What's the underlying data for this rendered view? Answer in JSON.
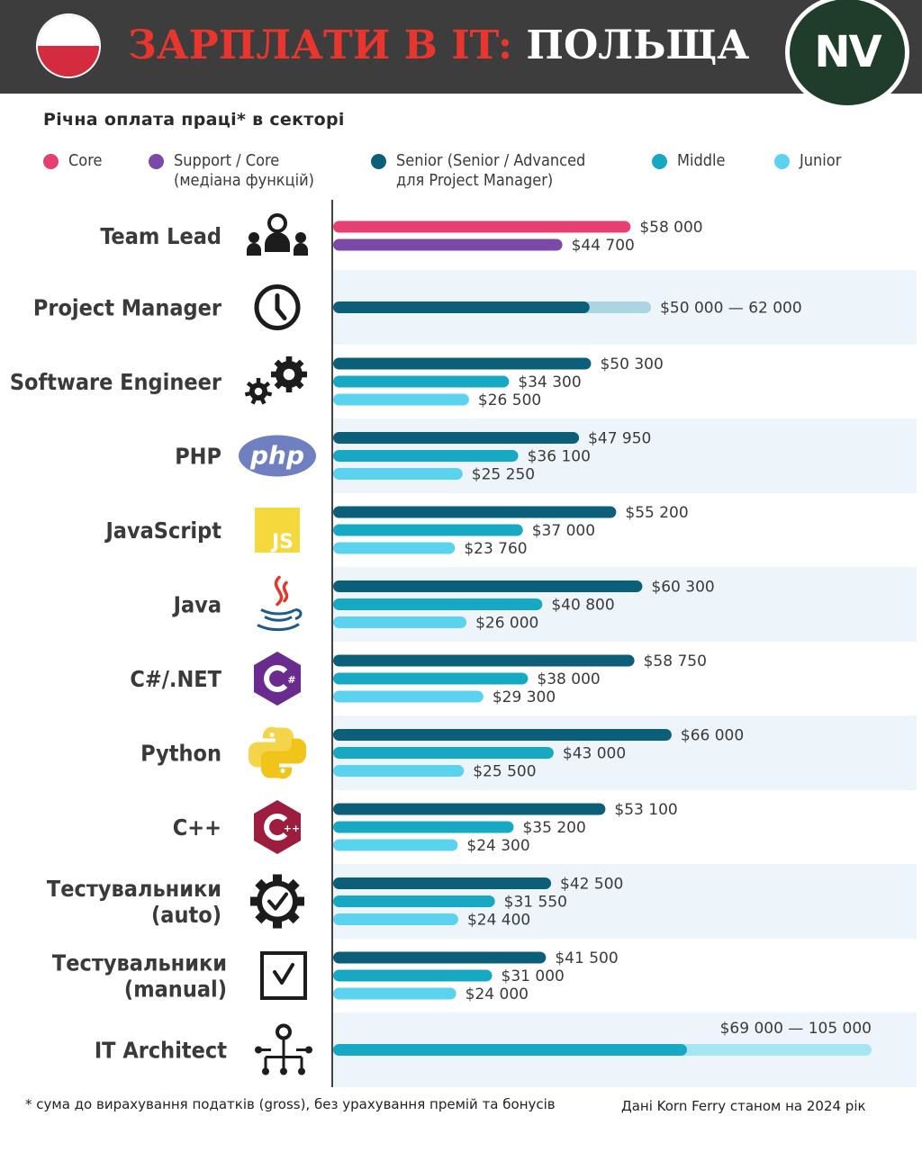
{
  "header": {
    "title_part1": "ЗАРПЛАТИ В IT:",
    "title_part2": "ПОЛЬЩА",
    "logo_text": "NV"
  },
  "subtitle": "Річна оплата праці* в секторі",
  "legend": [
    {
      "label_line1": "Core",
      "label_line2": "",
      "color": "#e63f72"
    },
    {
      "label_line1": "Support / Core",
      "label_line2": "(медіана функцій)",
      "color": "#7b4aa8"
    },
    {
      "label_line1": "Senior (Senior / Advanced",
      "label_line2": "для Project Manager)",
      "color": "#0c5f78"
    },
    {
      "label_line1": "Middle",
      "label_line2": "",
      "color": "#17a9c4"
    },
    {
      "label_line1": "Junior",
      "label_line2": "",
      "color": "#5bd3ee"
    }
  ],
  "chart_data": {
    "type": "bar",
    "orientation": "horizontal",
    "unit": "USD",
    "xlim": [
      0,
      108000
    ],
    "categories": [
      {
        "label": [
          "Team Lead"
        ],
        "icon": "team-icon",
        "bars": [
          {
            "series": "Core",
            "value": 58000,
            "label": "$58 000"
          },
          {
            "series": "Support / Core",
            "value": 44700,
            "label": "$44 700"
          }
        ]
      },
      {
        "label": [
          "Project Manager"
        ],
        "icon": "clock-icon",
        "range": true,
        "bars": [
          {
            "series": "Senior",
            "value": 50000,
            "max": 62000,
            "label": "$50 000 — 62 000"
          }
        ]
      },
      {
        "label": [
          "Software Engineer"
        ],
        "icon": "gears-icon",
        "bars": [
          {
            "series": "Senior",
            "value": 50300,
            "label": "$50 300"
          },
          {
            "series": "Middle",
            "value": 34300,
            "label": "$34 300"
          },
          {
            "series": "Junior",
            "value": 26500,
            "label": "$26 500"
          }
        ]
      },
      {
        "label": [
          "PHP"
        ],
        "icon": "php-icon",
        "bars": [
          {
            "series": "Senior",
            "value": 47950,
            "label": "$47 950"
          },
          {
            "series": "Middle",
            "value": 36100,
            "label": "$36 100"
          },
          {
            "series": "Junior",
            "value": 25250,
            "label": "$25 250"
          }
        ]
      },
      {
        "label": [
          "JavaScript"
        ],
        "icon": "js-icon",
        "bars": [
          {
            "series": "Senior",
            "value": 55200,
            "label": "$55 200"
          },
          {
            "series": "Middle",
            "value": 37000,
            "label": "$37 000"
          },
          {
            "series": "Junior",
            "value": 23760,
            "label": "$23 760"
          }
        ]
      },
      {
        "label": [
          "Java"
        ],
        "icon": "java-icon",
        "bars": [
          {
            "series": "Senior",
            "value": 60300,
            "label": "$60 300"
          },
          {
            "series": "Middle",
            "value": 40800,
            "label": "$40 800"
          },
          {
            "series": "Junior",
            "value": 26000,
            "label": "$26 000"
          }
        ]
      },
      {
        "label": [
          "C#/.NET"
        ],
        "icon": "csharp-icon",
        "bars": [
          {
            "series": "Senior",
            "value": 58750,
            "label": "$58 750"
          },
          {
            "series": "Middle",
            "value": 38000,
            "label": "$38 000"
          },
          {
            "series": "Junior",
            "value": 29300,
            "label": "$29 300"
          }
        ]
      },
      {
        "label": [
          "Python"
        ],
        "icon": "python-icon",
        "bars": [
          {
            "series": "Senior",
            "value": 66000,
            "label": "$66 000"
          },
          {
            "series": "Middle",
            "value": 43000,
            "label": "$43 000"
          },
          {
            "series": "Junior",
            "value": 25500,
            "label": "$25 500"
          }
        ]
      },
      {
        "label": [
          "C++"
        ],
        "icon": "cpp-icon",
        "bars": [
          {
            "series": "Senior",
            "value": 53100,
            "label": "$53 100"
          },
          {
            "series": "Middle",
            "value": 35200,
            "label": "$35 200"
          },
          {
            "series": "Junior",
            "value": 24300,
            "label": "$24 300"
          }
        ]
      },
      {
        "label": [
          "Тестувальники",
          "(auto)"
        ],
        "icon": "gear-check-icon",
        "bars": [
          {
            "series": "Senior",
            "value": 42500,
            "label": "$42 500"
          },
          {
            "series": "Middle",
            "value": 31550,
            "label": "$31 550"
          },
          {
            "series": "Junior",
            "value": 24400,
            "label": "$24 400"
          }
        ]
      },
      {
        "label": [
          "Тестувальники",
          "(manual)"
        ],
        "icon": "checkbox-icon",
        "bars": [
          {
            "series": "Senior",
            "value": 41500,
            "label": "$41 500"
          },
          {
            "series": "Middle",
            "value": 31000,
            "label": "$31 000"
          },
          {
            "series": "Junior",
            "value": 24000,
            "label": "$24 000"
          }
        ]
      },
      {
        "label": [
          "IT Architect"
        ],
        "icon": "network-icon",
        "range": true,
        "bars": [
          {
            "series": "Middle",
            "value": 69000,
            "max": 105000,
            "label": "$69 000 — 105 000"
          }
        ]
      }
    ]
  },
  "footnote": "* сума до вирахування податків (gross), без урахування премій та бонусів",
  "source": "Дані Korn Ferry станом на 2024 рік"
}
